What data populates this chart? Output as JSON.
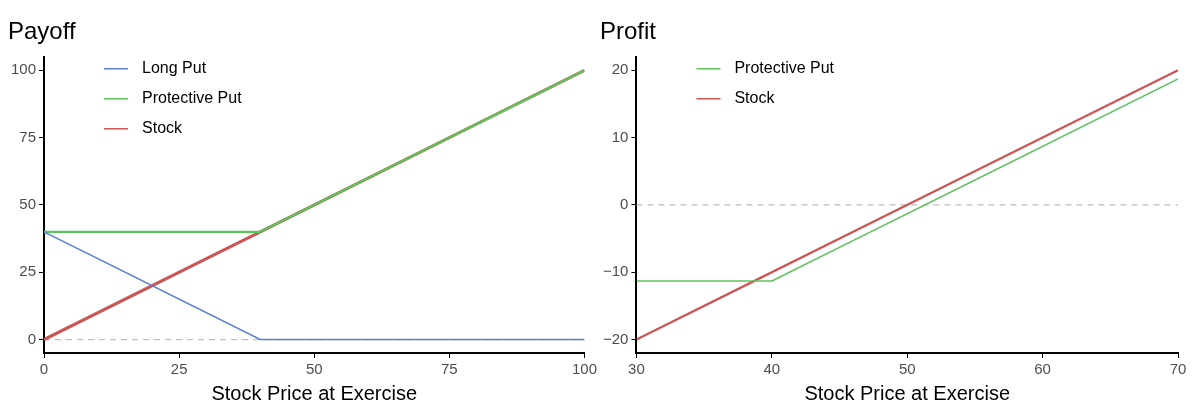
{
  "chart_data": [
    {
      "type": "line",
      "title": "Payoff",
      "xlabel": "Stock Price at Exercise",
      "xlim": [
        0,
        100
      ],
      "xticks": [
        0,
        25,
        50,
        75,
        100
      ],
      "ylim": [
        -5,
        105
      ],
      "yticks": [
        0,
        25,
        50,
        75,
        100
      ],
      "grid": false,
      "legend": "top left",
      "marker": "none",
      "line_style": "solid",
      "ref_lines": [
        {
          "axis": "y",
          "value": 0,
          "color": "#bebebe",
          "line_style": "dashed"
        }
      ],
      "series": [
        {
          "name": "Long Put",
          "color": "#5b7fd4",
          "x": [
            0,
            40,
            100
          ],
          "values": [
            40,
            0,
            0
          ]
        },
        {
          "name": "Protective Put",
          "color": "#5cc45c",
          "x": [
            0,
            40,
            100
          ],
          "values": [
            40,
            40,
            100
          ]
        },
        {
          "name": "Stock",
          "color": "#cc5555",
          "x": [
            0,
            100
          ],
          "values": [
            0,
            100
          ]
        }
      ]
    },
    {
      "type": "line",
      "title": "Profit",
      "xlabel": "Stock Price at Exercise",
      "xlim": [
        30,
        70
      ],
      "xticks": [
        30,
        40,
        50,
        60,
        70
      ],
      "ylim": [
        -22,
        22
      ],
      "yticks": [
        {
          "value": -20,
          "label": "−20"
        },
        {
          "value": -10,
          "label": "−10"
        },
        0,
        10,
        20
      ],
      "grid": false,
      "legend": "top left",
      "marker": "none",
      "line_style": "solid",
      "ref_lines": [
        {
          "axis": "y",
          "value": 0,
          "color": "#bebebe",
          "line_style": "dashed"
        }
      ],
      "series": [
        {
          "name": "Protective Put",
          "color": "#5cc45c",
          "x": [
            30,
            40,
            70
          ],
          "values": [
            -11.3,
            -11.3,
            18.7
          ]
        },
        {
          "name": "Stock",
          "color": "#cc5555",
          "x": [
            30,
            70
          ],
          "values": [
            -20,
            20
          ]
        }
      ]
    }
  ]
}
